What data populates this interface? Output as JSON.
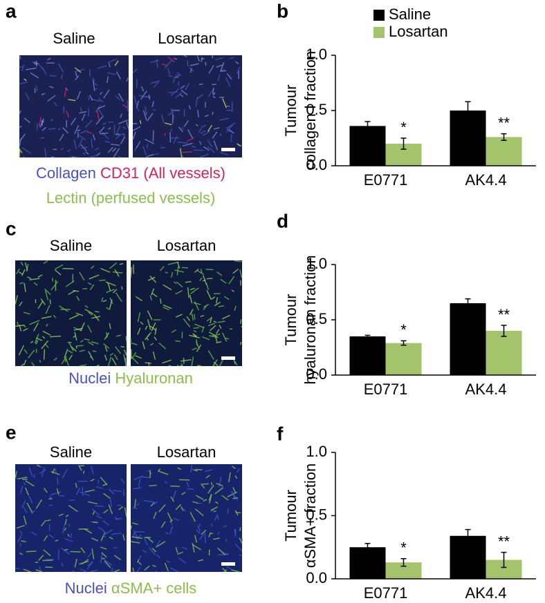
{
  "panels": [
    {
      "label": "a",
      "images": [
        "Saline",
        "Losartan"
      ],
      "caption": [
        [
          {
            "text": "Collagen",
            "color": "#4b4fc2"
          },
          {
            "text": "CD31 (All vessels)",
            "color": "#d2235a"
          }
        ],
        [
          {
            "text": "Lectin (perfused vessels)",
            "color": "#8dbd4c"
          }
        ]
      ]
    },
    {
      "label": "c",
      "images": [
        "Saline",
        "Losartan"
      ],
      "caption": [
        [
          {
            "text": "Nuclei",
            "color": "#4b4fc2"
          },
          {
            "text": "Hyaluronan",
            "color": "#8dbd4c"
          }
        ]
      ]
    },
    {
      "label": "e",
      "images": [
        "Saline",
        "Losartan"
      ],
      "caption": [
        [
          {
            "text": "Nuclei",
            "color": "#4b4fc2"
          },
          {
            "text": "αSMA+ cells",
            "color": "#8dbd4c"
          }
        ]
      ]
    }
  ],
  "chart_data": [
    {
      "type": "bar",
      "panel_label": "b",
      "ylabel": [
        "Tumour",
        "collagen I fraction"
      ],
      "categories": [
        "E0771",
        "AK4.4"
      ],
      "series": [
        {
          "name": "Saline",
          "color": "#000000",
          "values": [
            0.36,
            0.5
          ],
          "errors": [
            0.04,
            0.08
          ]
        },
        {
          "name": "Losartan",
          "color": "#a3c46a",
          "values": [
            0.2,
            0.26
          ],
          "errors": [
            0.05,
            0.03
          ],
          "markers": [
            "*",
            "**"
          ]
        }
      ],
      "ylim": [
        0,
        1
      ],
      "yticks": [
        {
          "value": 0,
          "label": "0.0"
        },
        0.5,
        {
          "value": 1,
          "label": "1.0"
        }
      ],
      "legend": "top-left"
    },
    {
      "type": "bar",
      "panel_label": "d",
      "ylabel": [
        "Tumour",
        "hyaluronan fraction"
      ],
      "categories": [
        "E0771",
        "AK4.4"
      ],
      "series": [
        {
          "color": "#000000",
          "values": [
            0.35,
            0.65
          ],
          "errors": [
            0.01,
            0.04
          ]
        },
        {
          "color": "#a3c46a",
          "values": [
            0.29,
            0.4
          ],
          "errors": [
            0.02,
            0.05
          ],
          "markers": [
            "*",
            "**"
          ]
        }
      ],
      "ylim": [
        0,
        1
      ],
      "yticks": [
        {
          "value": 0,
          "label": "0.0"
        },
        0.5,
        {
          "value": 1,
          "label": "1.0"
        }
      ]
    },
    {
      "type": "bar",
      "panel_label": "f",
      "ylabel": [
        "Tumour",
        "αSMA+ fraction"
      ],
      "categories": [
        "E0771",
        "AK4.4"
      ],
      "series": [
        {
          "color": "#000000",
          "values": [
            0.25,
            0.34
          ],
          "errors": [
            0.03,
            0.05
          ]
        },
        {
          "color": "#a3c46a",
          "values": [
            0.13,
            0.15
          ],
          "errors": [
            0.03,
            0.06
          ],
          "markers": [
            "*",
            "**"
          ]
        }
      ],
      "ylim": [
        0,
        1
      ],
      "yticks": [
        {
          "value": 0,
          "label": "0.0"
        },
        0.5,
        {
          "value": 1,
          "label": "1.0"
        }
      ]
    }
  ]
}
